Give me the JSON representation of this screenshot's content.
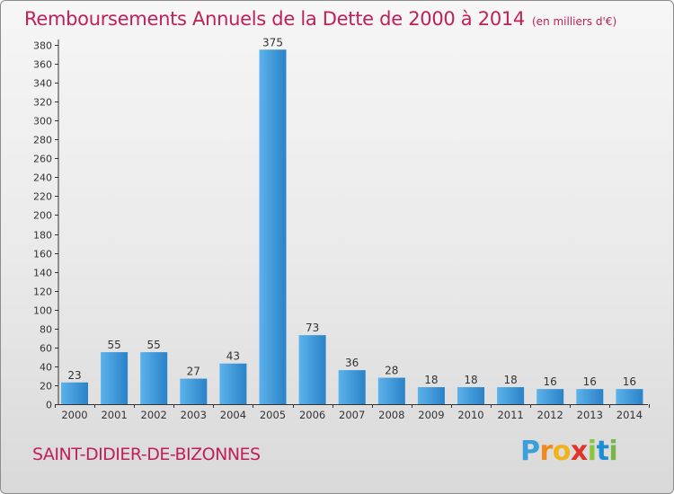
{
  "header": {
    "title": "Remboursements Annuels de la Dette de 2000 à 2014",
    "unit": "(en milliers d'€)"
  },
  "footer": {
    "commune": "SAINT-DIDIER-DE-BIZONNES",
    "brand": "Proxiti"
  },
  "colors": {
    "title": "#c0205a",
    "bar_light": "#5cb2ea",
    "bar_dark": "#2a82c8",
    "axis": "#333333",
    "grid_tick": "#333333"
  },
  "chart_data": {
    "type": "bar",
    "title": "Remboursements Annuels de la Dette de 2000 à 2014",
    "subtitle": "(en milliers d'€)",
    "xlabel": "",
    "ylabel": "",
    "categories": [
      "2000",
      "2001",
      "2002",
      "2003",
      "2004",
      "2005",
      "2006",
      "2007",
      "2008",
      "2009",
      "2010",
      "2011",
      "2012",
      "2013",
      "2014"
    ],
    "values": [
      23,
      55,
      55,
      27,
      43,
      375,
      73,
      36,
      28,
      18,
      18,
      18,
      16,
      16,
      16
    ],
    "ylim": [
      0,
      380
    ],
    "yticks": [
      0,
      20,
      40,
      60,
      80,
      100,
      120,
      140,
      160,
      180,
      200,
      220,
      240,
      260,
      280,
      300,
      320,
      340,
      360,
      380
    ],
    "grid": false
  }
}
